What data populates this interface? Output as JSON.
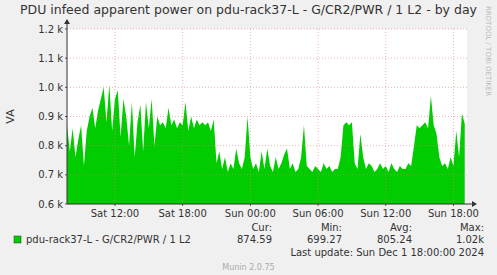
{
  "chart_data": {
    "type": "area",
    "title": "PDU infeed apparent power on pdu-rack37-L - G/CR2/PWR / 1 L2 - by day",
    "y_label": "VA",
    "x": [
      7.75,
      8,
      8.25,
      8.5,
      8.75,
      9,
      9.25,
      9.5,
      9.75,
      10,
      10.25,
      10.5,
      10.75,
      11,
      11.25,
      11.5,
      11.75,
      12,
      12.25,
      12.5,
      12.75,
      13,
      13.25,
      13.5,
      13.75,
      14,
      14.25,
      14.5,
      14.75,
      15,
      15.25,
      15.5,
      15.75,
      16,
      16.25,
      16.5,
      16.75,
      17,
      17.25,
      17.5,
      17.75,
      18,
      18.25,
      18.5,
      18.75,
      19,
      19.25,
      19.5,
      19.75,
      20,
      20.25,
      20.5,
      20.75,
      21,
      21.25,
      21.5,
      21.75,
      22,
      22.25,
      22.5,
      22.75,
      23,
      23.25,
      23.5,
      23.75,
      24,
      24.25,
      24.5,
      24.75,
      25,
      25.25,
      25.5,
      25.75,
      26,
      26.25,
      26.5,
      26.75,
      27,
      27.25,
      27.5,
      27.75,
      28,
      28.25,
      28.5,
      28.75,
      29,
      29.25,
      29.5,
      29.75,
      30,
      30.25,
      30.5,
      30.75,
      31,
      31.25,
      31.5,
      31.75,
      32,
      32.25,
      32.5,
      32.75,
      33,
      33.25,
      33.5,
      33.75,
      34,
      34.25,
      34.5,
      34.75,
      35,
      35.25,
      35.5,
      35.75,
      36,
      36.25,
      36.5,
      36.75,
      37,
      37.25,
      37.5,
      37.75,
      38,
      38.25,
      38.5,
      38.75,
      39,
      39.25,
      39.5,
      39.75,
      40,
      40.25,
      40.5,
      40.75,
      41,
      41.25,
      41.5,
      41.75,
      42,
      42.25,
      42.5,
      42.75,
      43
    ],
    "series": [
      {
        "name": "pdu-rack37-L - G/CR2/PWR / 1 L2",
        "color": "#00cc00",
        "values": [
          870,
          780,
          860,
          760,
          820,
          870,
          730,
          850,
          900,
          930,
          860,
          920,
          960,
          1000,
          880,
          1010,
          850,
          960,
          990,
          830,
          960,
          900,
          800,
          950,
          760,
          880,
          940,
          780,
          950,
          860,
          960,
          800,
          900,
          870,
          880,
          860,
          930,
          870,
          890,
          860,
          880,
          870,
          950,
          850,
          900,
          860,
          890,
          870,
          880,
          870,
          880,
          850,
          890,
          740,
          780,
          720,
          760,
          710,
          740,
          720,
          790,
          740,
          720,
          760,
          900,
          760,
          720,
          740,
          710,
          780,
          720,
          790,
          730,
          710,
          760,
          720,
          740,
          770,
          790,
          720,
          740,
          710,
          720,
          760,
          870,
          730,
          720,
          710,
          730,
          720,
          710,
          740,
          720,
          730,
          710,
          720,
          720,
          760,
          870,
          880,
          870,
          880,
          740,
          720,
          840,
          760,
          720,
          740,
          730,
          710,
          720,
          740,
          720,
          730,
          710,
          740,
          720,
          710,
          730,
          720,
          720,
          740,
          730,
          800,
          870,
          860,
          870,
          880,
          860,
          970,
          870,
          840,
          760,
          730,
          740,
          720,
          760,
          730,
          850,
          760,
          910,
          875
        ]
      }
    ],
    "xlim": [
      7.75,
      43.2
    ],
    "ylim": [
      600,
      1200
    ],
    "xticks": [
      {
        "value": 12,
        "label": "Sat 12:00"
      },
      {
        "value": 18,
        "label": "Sat 18:00"
      },
      {
        "value": 24,
        "label": "Sun 00:00"
      },
      {
        "value": 30,
        "label": "Sun 06:00"
      },
      {
        "value": 36,
        "label": "Sun 12:00"
      },
      {
        "value": 42,
        "label": "Sun 18:00"
      }
    ],
    "yticks": [
      {
        "value": 600,
        "label": "0.6 k"
      },
      {
        "value": 700,
        "label": "0.7 k"
      },
      {
        "value": 800,
        "label": "0.8 k"
      },
      {
        "value": 900,
        "label": "0.9 k"
      },
      {
        "value": 1000,
        "label": "1.0 k"
      },
      {
        "value": 1100,
        "label": "1.1 k"
      },
      {
        "value": 1200,
        "label": "1.2 k"
      }
    ],
    "grid": true,
    "stats": [
      {
        "label": "Cur:",
        "value": "874.59"
      },
      {
        "label": "Min:",
        "value": "699.27"
      },
      {
        "label": "Avg:",
        "value": "805.24"
      },
      {
        "label": "Max:",
        "value": "1.02k"
      }
    ],
    "footer": "Last update: Sun Dec  1 18:00:00 2024",
    "credit": "Munin 2.0.75",
    "watermark": "RRDTOOL / TOBI OETIKER"
  }
}
